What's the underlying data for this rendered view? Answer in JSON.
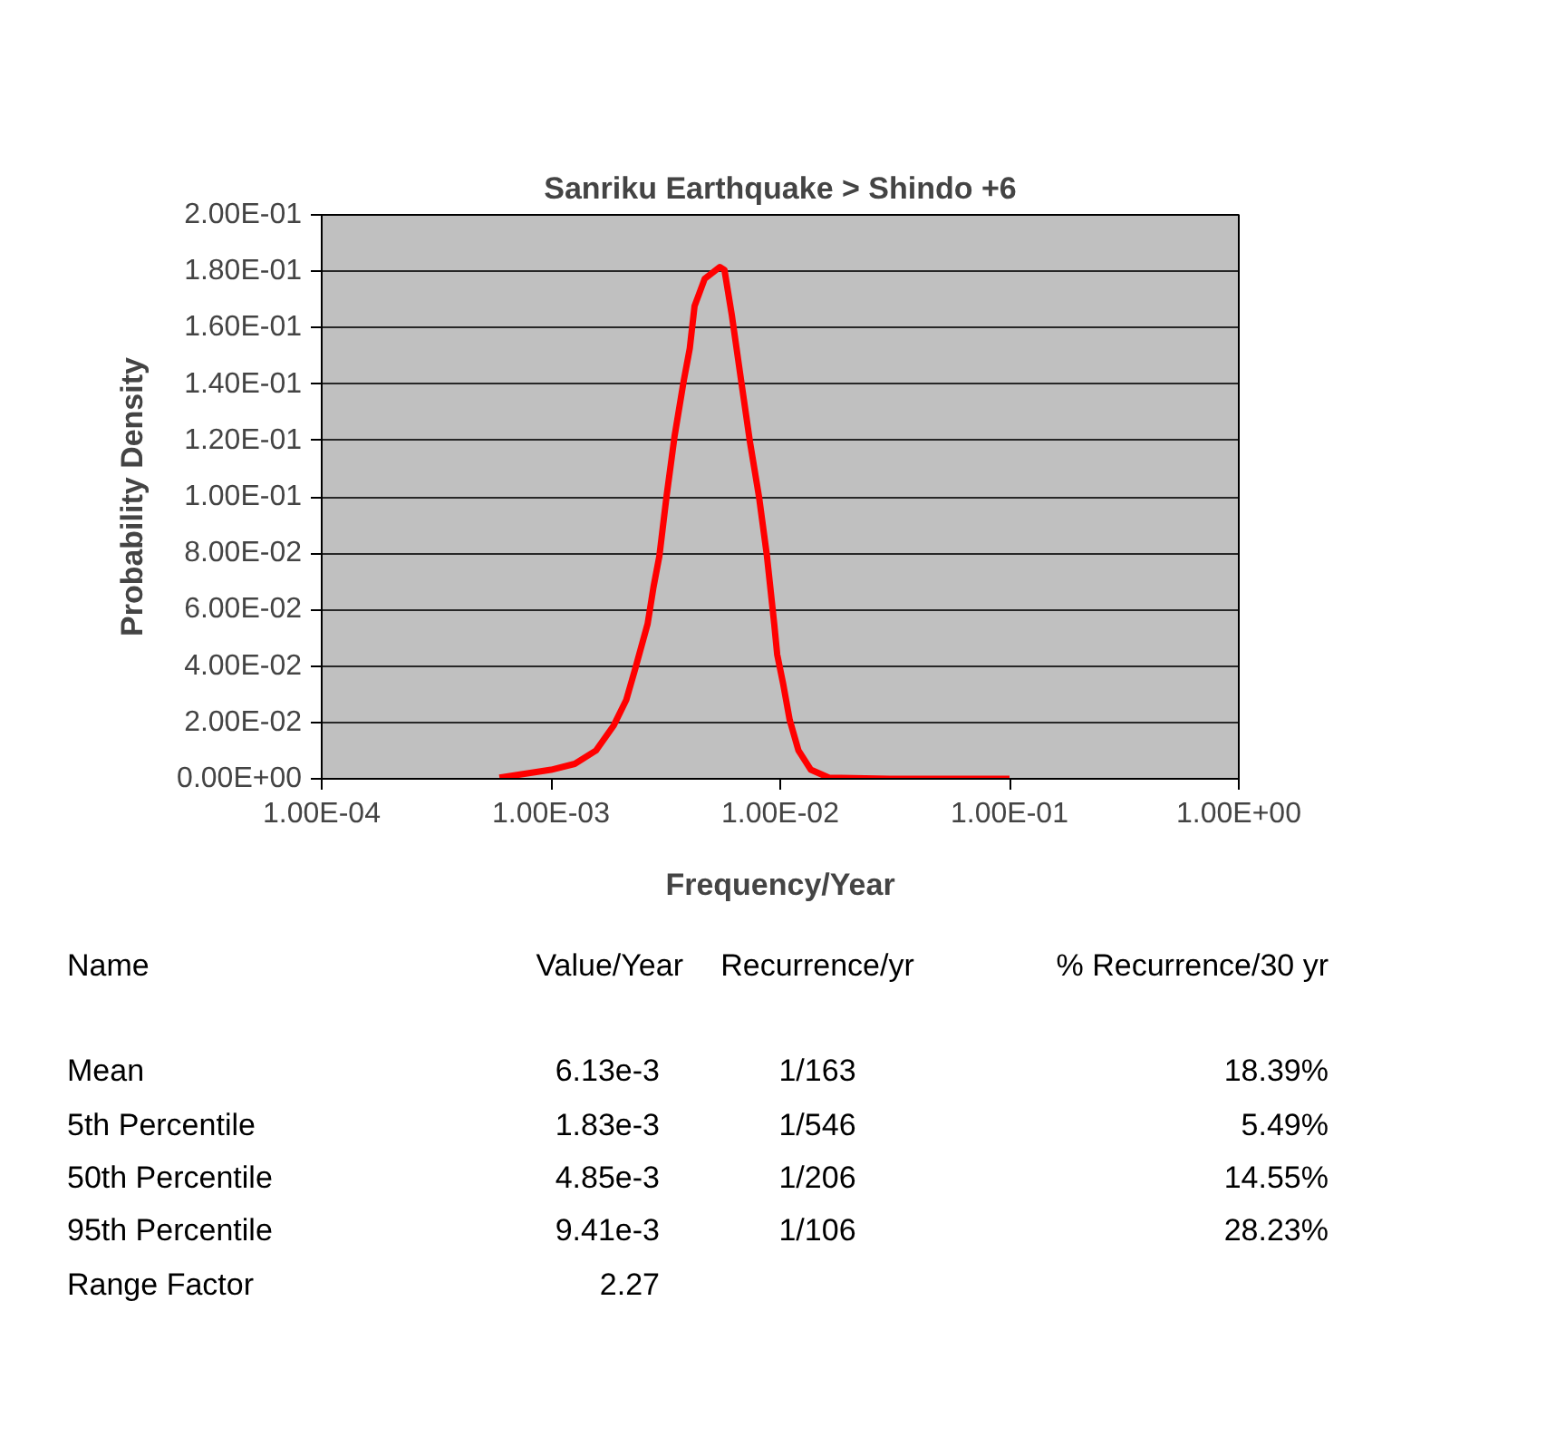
{
  "chart_data": {
    "type": "line",
    "title": "Sanriku Earthquake > Shindo +6",
    "xlabel": "Frequency/Year",
    "ylabel": "Probability Density",
    "log": "x",
    "grid": "y",
    "marker": "none",
    "line_style": "solid",
    "xlim": [
      0.0001,
      1
    ],
    "ylim": [
      0,
      0.2
    ],
    "xticks": [
      {
        "value": 0.0001,
        "label": "1.00E-04"
      },
      {
        "value": 0.001,
        "label": "1.00E-03"
      },
      {
        "value": 0.01,
        "label": "1.00E-02"
      },
      {
        "value": 0.1,
        "label": "1.00E-01"
      },
      {
        "value": 1,
        "label": "1.00E+00"
      }
    ],
    "yticks": [
      {
        "value": 0,
        "label": "0.00E+00"
      },
      {
        "value": 0.02,
        "label": "2.00E-02"
      },
      {
        "value": 0.04,
        "label": "4.00E-02"
      },
      {
        "value": 0.06,
        "label": "6.00E-02"
      },
      {
        "value": 0.08,
        "label": "8.00E-02"
      },
      {
        "value": 0.1,
        "label": "1.00E-01"
      },
      {
        "value": 0.12,
        "label": "1.20E-01"
      },
      {
        "value": 0.14,
        "label": "1.40E-01"
      },
      {
        "value": 0.16,
        "label": "1.60E-01"
      },
      {
        "value": 0.18,
        "label": "1.80E-01"
      },
      {
        "value": 0.2,
        "label": "2.00E-01"
      }
    ],
    "series": [
      {
        "color": "#ff0000",
        "x": [
          0.000596,
          0.001,
          0.00127,
          0.00157,
          0.00188,
          0.00213,
          0.00233,
          0.00264,
          0.0028,
          0.00297,
          0.00319,
          0.00346,
          0.00379,
          0.00403,
          0.00423,
          0.00468,
          0.00545,
          0.00571,
          0.00615,
          0.00673,
          0.00738,
          0.00808,
          0.00875,
          0.00941,
          0.0097,
          0.0103,
          0.011,
          0.012,
          0.0136,
          0.0163,
          0.03,
          0.06,
          0.1
        ],
        "values": [
          0.0004,
          0.0032,
          0.0053,
          0.01,
          0.019,
          0.028,
          0.039,
          0.055,
          0.068,
          0.079,
          0.1,
          0.1215,
          0.141,
          0.1526,
          0.1677,
          0.1773,
          0.1815,
          0.1805,
          0.1644,
          0.142,
          0.1194,
          0.1,
          0.079,
          0.055,
          0.044,
          0.0336,
          0.0208,
          0.0101,
          0.0032,
          0.0004,
          0,
          0,
          0
        ]
      }
    ],
    "annotations": [
      "Name",
      "Value/Year",
      "Recurrence/yr",
      "% Recurrence/30 yr",
      "Mean",
      "6.13e-3",
      "1/163",
      "18.39%",
      "5th Percentile",
      "1.83e-3",
      "1/546",
      "5.49%",
      "50th Percentile",
      "4.85e-3",
      "1/206",
      "14.55%",
      "95th Percentile",
      "9.41e-3",
      "1/106",
      "28.23%",
      "Range Factor",
      "2.27"
    ]
  }
}
